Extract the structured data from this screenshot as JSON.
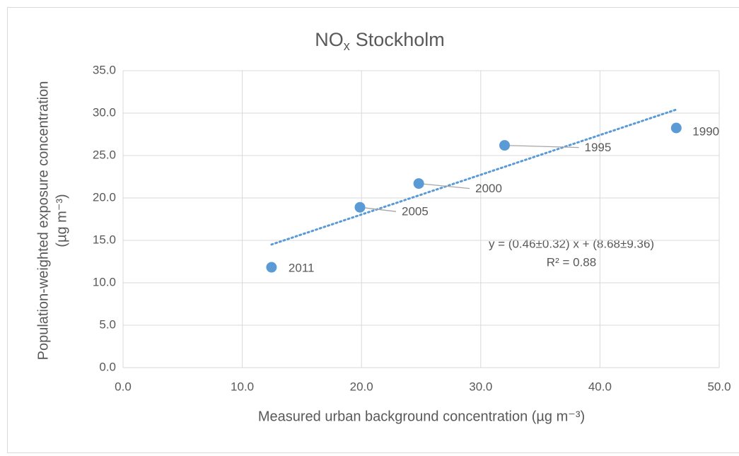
{
  "chart_data": {
    "type": "scatter",
    "title": [
      "NO",
      "x",
      "Stockholm"
    ],
    "xlabel": "Measured urban background concentration (µg m⁻³)",
    "ylabel": [
      "Population-weighted exposure concentration",
      "(µg m⁻³)"
    ],
    "x": [
      12.45,
      19.87,
      24.8,
      32.0,
      46.4
    ],
    "series": [
      {
        "color": "#5b9bd5",
        "values": [
          11.83,
          18.9,
          21.7,
          26.2,
          28.25
        ]
      }
    ],
    "point_labels": [
      "2011",
      "2005",
      "2000",
      "1995",
      "1990"
    ],
    "trendline": {
      "color": "#5b9bd5",
      "equation": "y = (0.46±0.32)  x + (8.68±9.36)",
      "r_squared": "R² = 0.88"
    },
    "xlim": [
      0,
      50
    ],
    "ylim": [
      0,
      35
    ],
    "xticks": [
      {
        "value": 0,
        "label": "0.0"
      },
      {
        "value": 10,
        "label": "10.0"
      },
      {
        "value": 20,
        "label": "20.0"
      },
      {
        "value": 30,
        "label": "30.0"
      },
      {
        "value": 40,
        "label": "40.0"
      },
      {
        "value": 50,
        "label": "50.0"
      }
    ],
    "yticks": [
      {
        "value": 0,
        "label": "0.0"
      },
      {
        "value": 5,
        "label": "5.0"
      },
      {
        "value": 10,
        "label": "10.0"
      },
      {
        "value": 15,
        "label": "15.0"
      },
      {
        "value": 20,
        "label": "20.0"
      },
      {
        "value": 25,
        "label": "25.0"
      },
      {
        "value": 30,
        "label": "30.0"
      },
      {
        "value": 35,
        "label": "35.0"
      }
    ],
    "grid": true
  }
}
